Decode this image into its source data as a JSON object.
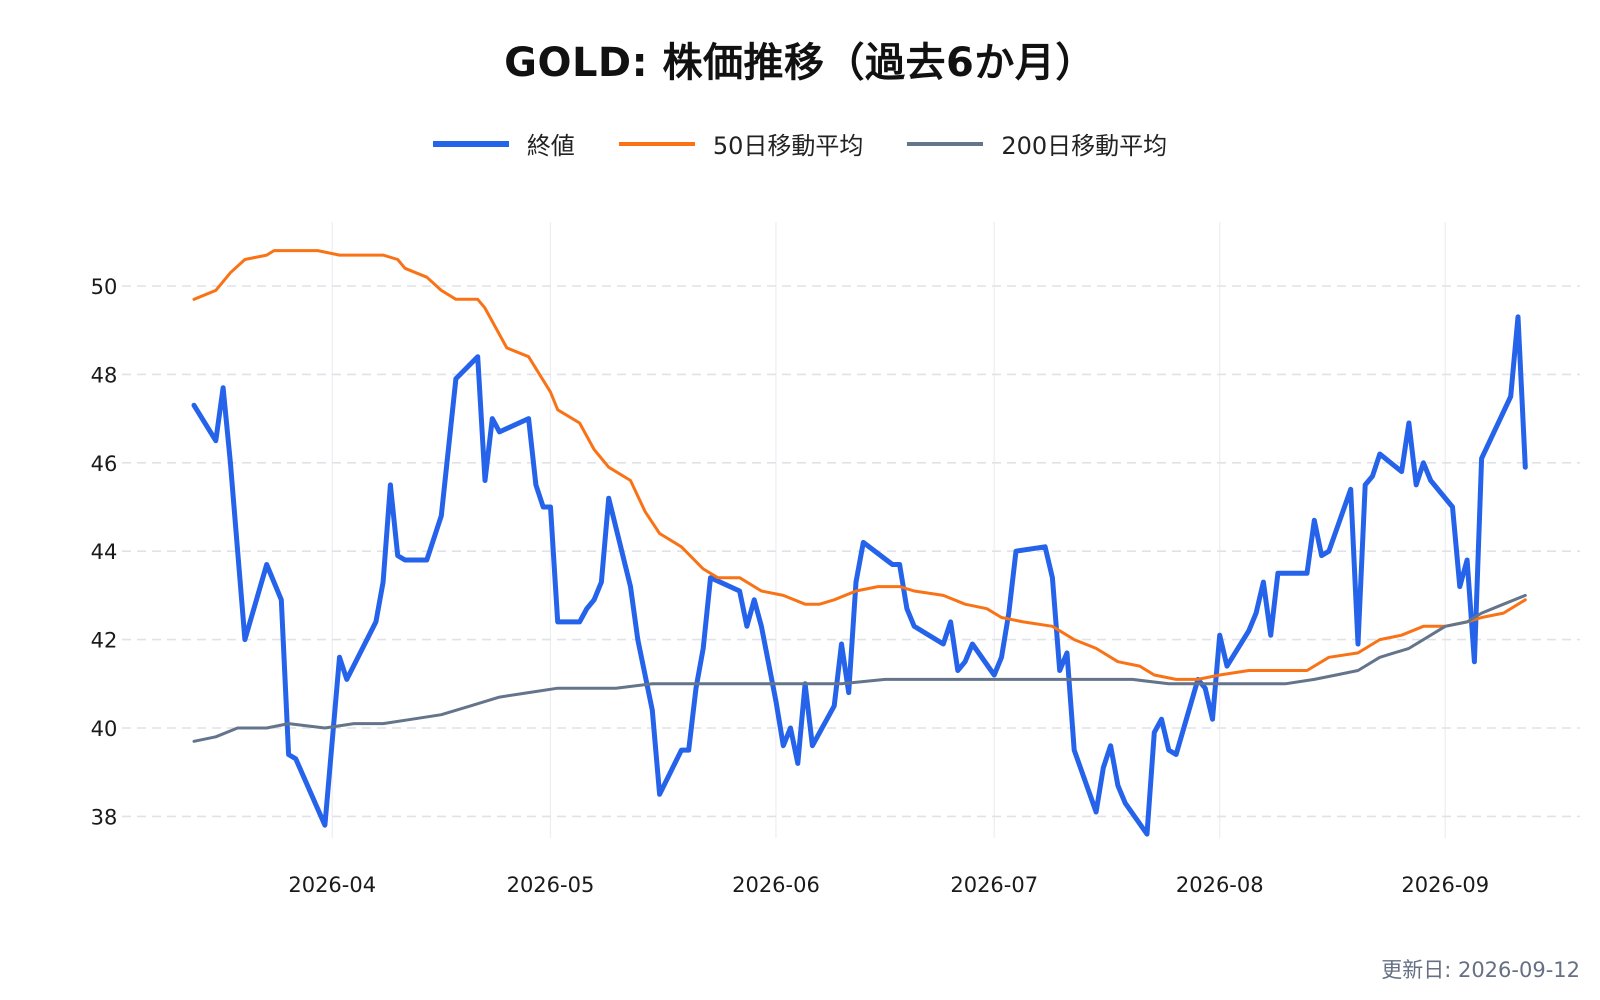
{
  "chart_data": {
    "type": "line",
    "title": "GOLD: 株価推移（過去6か月）",
    "xlabel": "",
    "ylabel": "",
    "x_start": "2026-03-13",
    "x_end": "2026-09-11",
    "ylim": [
      37,
      51.5
    ],
    "y_ticks": [
      "38",
      "40",
      "42",
      "44",
      "46",
      "48",
      "50"
    ],
    "x_ticks": [
      "2026-04",
      "2026-05",
      "2026-06",
      "2026-07",
      "2026-08",
      "2026-09"
    ],
    "grid": "horizontal-dashed",
    "legend_position": "top-center",
    "series": [
      {
        "name": "終値",
        "color": "#2563eb",
        "points": [
          [
            "2026-03-13",
            47.3
          ],
          [
            "2026-03-16",
            46.5
          ],
          [
            "2026-03-17",
            47.7
          ],
          [
            "2026-03-18",
            46.0
          ],
          [
            "2026-03-20",
            42.0
          ],
          [
            "2026-03-23",
            43.7
          ],
          [
            "2026-03-25",
            42.9
          ],
          [
            "2026-03-26",
            39.4
          ],
          [
            "2026-03-27",
            39.3
          ],
          [
            "2026-03-31",
            37.8
          ],
          [
            "2026-04-02",
            41.6
          ],
          [
            "2026-04-03",
            41.1
          ],
          [
            "2026-04-07",
            42.4
          ],
          [
            "2026-04-08",
            43.3
          ],
          [
            "2026-04-09",
            45.5
          ],
          [
            "2026-04-10",
            43.9
          ],
          [
            "2026-04-11",
            43.8
          ],
          [
            "2026-04-14",
            43.8
          ],
          [
            "2026-04-16",
            44.8
          ],
          [
            "2026-04-18",
            47.9
          ],
          [
            "2026-04-21",
            48.4
          ],
          [
            "2026-04-22",
            45.6
          ],
          [
            "2026-04-23",
            47.0
          ],
          [
            "2026-04-24",
            46.7
          ],
          [
            "2026-04-28",
            47.0
          ],
          [
            "2026-04-29",
            45.5
          ],
          [
            "2026-04-30",
            45.0
          ],
          [
            "2026-05-01",
            45.0
          ],
          [
            "2026-05-02",
            42.4
          ],
          [
            "2026-05-05",
            42.4
          ],
          [
            "2026-05-06",
            42.7
          ],
          [
            "2026-05-07",
            42.9
          ],
          [
            "2026-05-08",
            43.3
          ],
          [
            "2026-05-09",
            45.2
          ],
          [
            "2026-05-12",
            43.2
          ],
          [
            "2026-05-13",
            42.0
          ],
          [
            "2026-05-15",
            40.4
          ],
          [
            "2026-05-16",
            38.5
          ],
          [
            "2026-05-19",
            39.5
          ],
          [
            "2026-05-20",
            39.5
          ],
          [
            "2026-05-21",
            40.9
          ],
          [
            "2026-05-22",
            41.8
          ],
          [
            "2026-05-23",
            43.4
          ],
          [
            "2026-05-27",
            43.1
          ],
          [
            "2026-05-28",
            42.3
          ],
          [
            "2026-05-29",
            42.9
          ],
          [
            "2026-05-30",
            42.3
          ],
          [
            "2026-06-01",
            40.6
          ],
          [
            "2026-06-02",
            39.6
          ],
          [
            "2026-06-03",
            40.0
          ],
          [
            "2026-06-04",
            39.2
          ],
          [
            "2026-06-05",
            41.0
          ],
          [
            "2026-06-06",
            39.6
          ],
          [
            "2026-06-09",
            40.5
          ],
          [
            "2026-06-10",
            41.9
          ],
          [
            "2026-06-11",
            40.8
          ],
          [
            "2026-06-12",
            43.3
          ],
          [
            "2026-06-13",
            44.2
          ],
          [
            "2026-06-17",
            43.7
          ],
          [
            "2026-06-18",
            43.7
          ],
          [
            "2026-06-19",
            42.7
          ],
          [
            "2026-06-20",
            42.3
          ],
          [
            "2026-06-24",
            41.9
          ],
          [
            "2026-06-25",
            42.4
          ],
          [
            "2026-06-26",
            41.3
          ],
          [
            "2026-06-27",
            41.5
          ],
          [
            "2026-06-28",
            41.9
          ],
          [
            "2026-07-01",
            41.2
          ],
          [
            "2026-07-02",
            41.6
          ],
          [
            "2026-07-03",
            42.6
          ],
          [
            "2026-07-04",
            44.0
          ],
          [
            "2026-07-08",
            44.1
          ],
          [
            "2026-07-09",
            43.4
          ],
          [
            "2026-07-10",
            41.3
          ],
          [
            "2026-07-11",
            41.7
          ],
          [
            "2026-07-12",
            39.5
          ],
          [
            "2026-07-15",
            38.1
          ],
          [
            "2026-07-16",
            39.1
          ],
          [
            "2026-07-17",
            39.6
          ],
          [
            "2026-07-18",
            38.7
          ],
          [
            "2026-07-19",
            38.3
          ],
          [
            "2026-07-22",
            37.6
          ],
          [
            "2026-07-23",
            39.9
          ],
          [
            "2026-07-24",
            40.2
          ],
          [
            "2026-07-25",
            39.5
          ],
          [
            "2026-07-26",
            39.4
          ],
          [
            "2026-07-29",
            41.1
          ],
          [
            "2026-07-30",
            40.9
          ],
          [
            "2026-07-31",
            40.2
          ],
          [
            "2026-08-01",
            42.1
          ],
          [
            "2026-08-02",
            41.4
          ],
          [
            "2026-08-05",
            42.2
          ],
          [
            "2026-08-06",
            42.6
          ],
          [
            "2026-08-07",
            43.3
          ],
          [
            "2026-08-08",
            42.1
          ],
          [
            "2026-08-09",
            43.5
          ],
          [
            "2026-08-13",
            43.5
          ],
          [
            "2026-08-14",
            44.7
          ],
          [
            "2026-08-15",
            43.9
          ],
          [
            "2026-08-16",
            44.0
          ],
          [
            "2026-08-19",
            45.4
          ],
          [
            "2026-08-20",
            41.9
          ],
          [
            "2026-08-21",
            45.5
          ],
          [
            "2026-08-22",
            45.7
          ],
          [
            "2026-08-23",
            46.2
          ],
          [
            "2026-08-26",
            45.8
          ],
          [
            "2026-08-27",
            46.9
          ],
          [
            "2026-08-28",
            45.5
          ],
          [
            "2026-08-29",
            46.0
          ],
          [
            "2026-08-30",
            45.6
          ],
          [
            "2026-09-02",
            45.0
          ],
          [
            "2026-09-03",
            43.2
          ],
          [
            "2026-09-04",
            43.8
          ],
          [
            "2026-09-05",
            41.5
          ],
          [
            "2026-09-06",
            46.1
          ],
          [
            "2026-09-10",
            47.5
          ],
          [
            "2026-09-11",
            49.3
          ],
          [
            "2026-09-12",
            45.9
          ]
        ]
      },
      {
        "name": "50日移動平均",
        "color": "#f97316",
        "points": [
          [
            "2026-03-13",
            49.7
          ],
          [
            "2026-03-16",
            49.9
          ],
          [
            "2026-03-18",
            50.3
          ],
          [
            "2026-03-20",
            50.6
          ],
          [
            "2026-03-23",
            50.7
          ],
          [
            "2026-03-24",
            50.8
          ],
          [
            "2026-03-27",
            50.8
          ],
          [
            "2026-03-30",
            50.8
          ],
          [
            "2026-04-02",
            50.7
          ],
          [
            "2026-04-05",
            50.7
          ],
          [
            "2026-04-08",
            50.7
          ],
          [
            "2026-04-10",
            50.6
          ],
          [
            "2026-04-11",
            50.4
          ],
          [
            "2026-04-14",
            50.2
          ],
          [
            "2026-04-16",
            49.9
          ],
          [
            "2026-04-18",
            49.7
          ],
          [
            "2026-04-21",
            49.7
          ],
          [
            "2026-04-22",
            49.5
          ],
          [
            "2026-04-25",
            48.6
          ],
          [
            "2026-04-28",
            48.4
          ],
          [
            "2026-05-01",
            47.6
          ],
          [
            "2026-05-02",
            47.2
          ],
          [
            "2026-05-05",
            46.9
          ],
          [
            "2026-05-07",
            46.3
          ],
          [
            "2026-05-09",
            45.9
          ],
          [
            "2026-05-12",
            45.6
          ],
          [
            "2026-05-14",
            44.9
          ],
          [
            "2026-05-16",
            44.4
          ],
          [
            "2026-05-19",
            44.1
          ],
          [
            "2026-05-22",
            43.6
          ],
          [
            "2026-05-24",
            43.4
          ],
          [
            "2026-05-27",
            43.4
          ],
          [
            "2026-05-30",
            43.1
          ],
          [
            "2026-06-02",
            43.0
          ],
          [
            "2026-06-05",
            42.8
          ],
          [
            "2026-06-07",
            42.8
          ],
          [
            "2026-06-09",
            42.9
          ],
          [
            "2026-06-12",
            43.1
          ],
          [
            "2026-06-15",
            43.2
          ],
          [
            "2026-06-18",
            43.2
          ],
          [
            "2026-06-20",
            43.1
          ],
          [
            "2026-06-24",
            43.0
          ],
          [
            "2026-06-27",
            42.8
          ],
          [
            "2026-06-30",
            42.7
          ],
          [
            "2026-07-02",
            42.5
          ],
          [
            "2026-07-05",
            42.4
          ],
          [
            "2026-07-09",
            42.3
          ],
          [
            "2026-07-12",
            42.0
          ],
          [
            "2026-07-15",
            41.8
          ],
          [
            "2026-07-18",
            41.5
          ],
          [
            "2026-07-21",
            41.4
          ],
          [
            "2026-07-23",
            41.2
          ],
          [
            "2026-07-26",
            41.1
          ],
          [
            "2026-07-29",
            41.1
          ],
          [
            "2026-08-01",
            41.2
          ],
          [
            "2026-08-05",
            41.3
          ],
          [
            "2026-08-09",
            41.3
          ],
          [
            "2026-08-13",
            41.3
          ],
          [
            "2026-08-16",
            41.6
          ],
          [
            "2026-08-20",
            41.7
          ],
          [
            "2026-08-23",
            42.0
          ],
          [
            "2026-08-26",
            42.1
          ],
          [
            "2026-08-29",
            42.3
          ],
          [
            "2026-09-01",
            42.3
          ],
          [
            "2026-09-04",
            42.4
          ],
          [
            "2026-09-06",
            42.5
          ],
          [
            "2026-09-09",
            42.6
          ],
          [
            "2026-09-12",
            42.9
          ]
        ]
      },
      {
        "name": "200日移動平均",
        "color": "#64748b",
        "points": [
          [
            "2026-03-13",
            39.7
          ],
          [
            "2026-03-16",
            39.8
          ],
          [
            "2026-03-19",
            40.0
          ],
          [
            "2026-03-23",
            40.0
          ],
          [
            "2026-03-26",
            40.1
          ],
          [
            "2026-03-31",
            40.0
          ],
          [
            "2026-04-04",
            40.1
          ],
          [
            "2026-04-08",
            40.1
          ],
          [
            "2026-04-12",
            40.2
          ],
          [
            "2026-04-16",
            40.3
          ],
          [
            "2026-04-20",
            40.5
          ],
          [
            "2026-04-24",
            40.7
          ],
          [
            "2026-04-28",
            40.8
          ],
          [
            "2026-05-02",
            40.9
          ],
          [
            "2026-05-06",
            40.9
          ],
          [
            "2026-05-10",
            40.9
          ],
          [
            "2026-05-15",
            41.0
          ],
          [
            "2026-05-20",
            41.0
          ],
          [
            "2026-05-26",
            41.0
          ],
          [
            "2026-06-01",
            41.0
          ],
          [
            "2026-06-05",
            41.0
          ],
          [
            "2026-06-10",
            41.0
          ],
          [
            "2026-06-16",
            41.1
          ],
          [
            "2026-06-22",
            41.1
          ],
          [
            "2026-06-28",
            41.1
          ],
          [
            "2026-07-04",
            41.1
          ],
          [
            "2026-07-10",
            41.1
          ],
          [
            "2026-07-15",
            41.1
          ],
          [
            "2026-07-20",
            41.1
          ],
          [
            "2026-07-25",
            41.0
          ],
          [
            "2026-07-31",
            41.0
          ],
          [
            "2026-08-05",
            41.0
          ],
          [
            "2026-08-10",
            41.0
          ],
          [
            "2026-08-14",
            41.1
          ],
          [
            "2026-08-17",
            41.2
          ],
          [
            "2026-08-20",
            41.3
          ],
          [
            "2026-08-23",
            41.6
          ],
          [
            "2026-08-27",
            41.8
          ],
          [
            "2026-08-30",
            42.1
          ],
          [
            "2026-09-01",
            42.3
          ],
          [
            "2026-09-04",
            42.4
          ],
          [
            "2026-09-06",
            42.6
          ],
          [
            "2026-09-09",
            42.8
          ],
          [
            "2026-09-12",
            43.0
          ]
        ]
      }
    ]
  },
  "footer": {
    "updated": "更新日: 2026-09-12"
  }
}
